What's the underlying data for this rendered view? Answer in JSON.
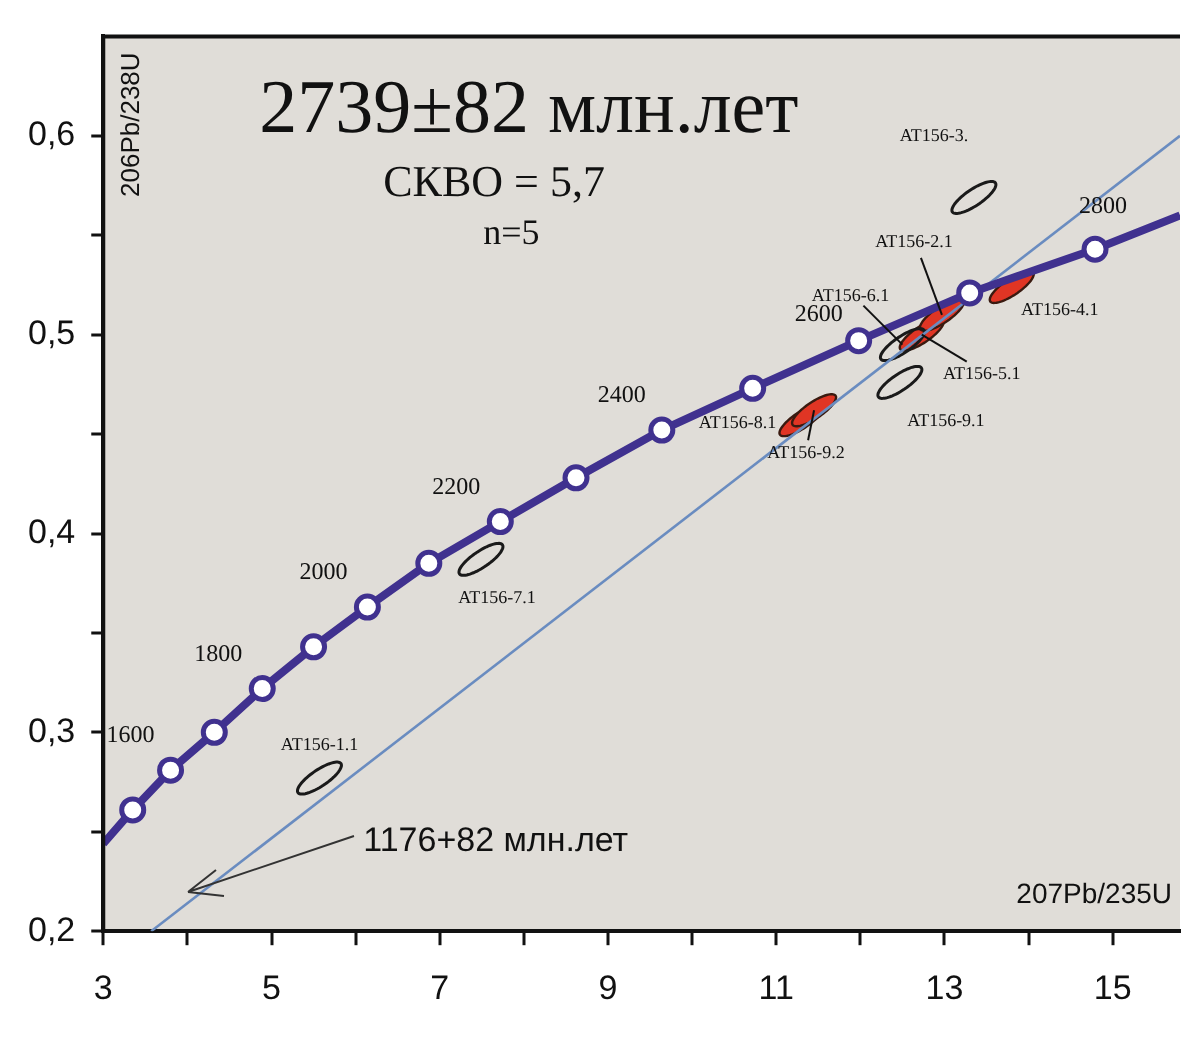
{
  "chart_data": {
    "type": "scatter",
    "title": "2739±82 млн.лет",
    "xlabel": "207Pb/235U",
    "ylabel": "206Pb/238U",
    "xlim": [
      3,
      15.8
    ],
    "ylim": [
      0.2,
      0.65
    ],
    "xticks": [
      3,
      {
        "value": 4,
        "label": null
      },
      5,
      {
        "value": 6,
        "label": null
      },
      7,
      {
        "value": 8,
        "label": null
      },
      9,
      {
        "value": 10,
        "label": null
      },
      11,
      {
        "value": 12,
        "label": null
      },
      13,
      {
        "value": 14,
        "label": null
      },
      15
    ],
    "yticks": [
      {
        "value": 0.2,
        "label": "0,2"
      },
      {
        "value": 0.25,
        "label": null
      },
      {
        "value": 0.3,
        "label": "0,3"
      },
      {
        "value": 0.35,
        "label": null
      },
      {
        "value": 0.4,
        "label": "0,4"
      },
      {
        "value": 0.45,
        "label": null
      },
      {
        "value": 0.5,
        "label": "0,5"
      },
      {
        "value": 0.55,
        "label": null
      },
      {
        "value": 0.6,
        "label": "0,6"
      }
    ],
    "grid": false,
    "legend": false,
    "series": [
      {
        "type": "line",
        "marker": "none",
        "color": "#40318f",
        "x": [
          3,
          3.35,
          3.8,
          4.32,
          4.89,
          5.5,
          6.14,
          6.87,
          7.72,
          8.62,
          9.64,
          10.72,
          11.98,
          13.3,
          14.79,
          15.8
        ],
        "values": [
          0.244,
          0.261,
          0.281,
          0.3,
          0.322,
          0.343,
          0.363,
          0.385,
          0.406,
          0.428,
          0.452,
          0.473,
          0.497,
          0.521,
          0.543,
          0.56
        ]
      },
      {
        "marker": "circle",
        "color": "#40318f",
        "x": [
          3.35,
          3.8,
          4.32,
          4.89,
          5.5,
          6.14,
          6.87,
          7.72,
          8.62,
          9.64,
          10.72,
          11.98,
          13.3,
          14.79
        ],
        "values": [
          0.261,
          0.281,
          0.3,
          0.322,
          0.343,
          0.363,
          0.385,
          0.406,
          0.428,
          0.452,
          0.473,
          0.497,
          0.521,
          0.543
        ]
      },
      {
        "type": "line",
        "marker": "none",
        "color": "#6a8cc0",
        "x": [
          3.57,
          15.8
        ],
        "values": [
          0.2,
          0.6
        ]
      },
      {
        "marker": "circle",
        "color": "#e03524",
        "x": [
          11.3,
          11.45,
          13.8,
          12.73,
          12.97
        ],
        "values": [
          0.457,
          0.462,
          0.524,
          0.5,
          0.51
        ]
      },
      {
        "marker": "none",
        "color": "#1a1a1a",
        "x": [
          13.35,
          12.47,
          12.5,
          7.49,
          5.57
        ],
        "values": [
          0.569,
          0.476,
          0.495,
          0.387,
          0.277
        ]
      }
    ],
    "annotations": [
      "СКВО = 5,7",
      "n=5",
      "1176+82 млн.лет",
      {
        "text": "1600",
        "x": 3.8,
        "y": 0.281
      },
      {
        "text": "1800",
        "x": 4.89,
        "y": 0.322
      },
      {
        "text": "2000",
        "x": 6.14,
        "y": 0.363
      },
      {
        "text": "2200",
        "x": 7.72,
        "y": 0.406
      },
      {
        "text": "2400",
        "x": 9.64,
        "y": 0.452
      },
      {
        "text": "2600",
        "x": 11.98,
        "y": 0.497
      },
      {
        "text": "2800",
        "x": 14.79,
        "y": 0.543
      },
      {
        "text": "AT156-8.1",
        "x": 11.3,
        "y": 0.457
      },
      {
        "text": "AT156-9.2",
        "x": 11.45,
        "y": 0.462
      },
      {
        "text": "AT156-4.1",
        "x": 13.8,
        "y": 0.524
      },
      {
        "text": "AT156-5.1",
        "x": 12.73,
        "y": 0.5
      },
      {
        "text": "AT156-2.1",
        "x": 12.97,
        "y": 0.51
      },
      {
        "text": "AT156-3.",
        "x": 13.35,
        "y": 0.569
      },
      {
        "text": "AT156-9.1",
        "x": 12.47,
        "y": 0.476
      },
      {
        "text": "AT156-6.1",
        "x": 12.5,
        "y": 0.495
      },
      {
        "text": "AT156-7.1",
        "x": 7.49,
        "y": 0.387
      },
      {
        "text": "AT156-1.1",
        "x": 5.57,
        "y": 0.277
      }
    ]
  }
}
